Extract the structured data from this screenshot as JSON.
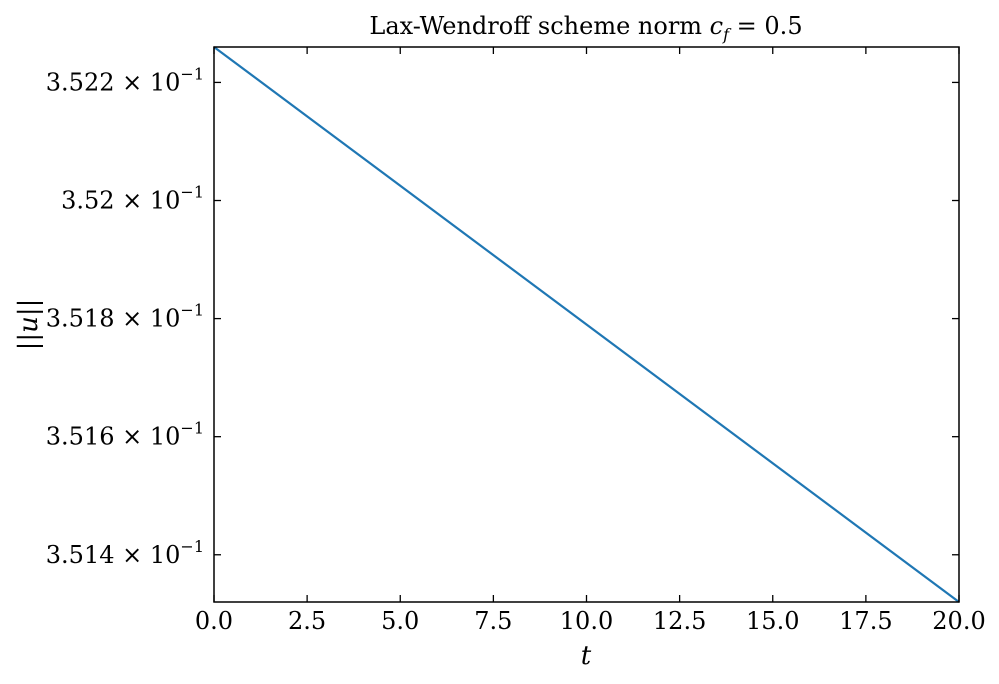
{
  "chart_data": {
    "type": "line",
    "title_prefix": "Lax-Wendroff scheme norm ",
    "title_var": "c",
    "title_sub": "f",
    "title_suffix": " = 0.5",
    "xlabel": "t",
    "ylabel": "||u||",
    "xlim": [
      0.0,
      20.0
    ],
    "ylim": [
      0.35132,
      0.35226
    ],
    "x_ticks": [
      {
        "value": 0.0,
        "label": "0.0"
      },
      {
        "value": 2.5,
        "label": "2.5"
      },
      {
        "value": 5.0,
        "label": "5.0"
      },
      {
        "value": 7.5,
        "label": "7.5"
      },
      {
        "value": 10.0,
        "label": "10.0"
      },
      {
        "value": 12.5,
        "label": "12.5"
      },
      {
        "value": 15.0,
        "label": "15.0"
      },
      {
        "value": 17.5,
        "label": "17.5"
      },
      {
        "value": 20.0,
        "label": "20.0"
      }
    ],
    "y_ticks": [
      {
        "value": 0.3514,
        "mantissa": "3.514",
        "base": "10",
        "exp": "−1"
      },
      {
        "value": 0.3516,
        "mantissa": "3.516",
        "base": "10",
        "exp": "−1"
      },
      {
        "value": 0.3518,
        "mantissa": "3.518",
        "base": "10",
        "exp": "−1"
      },
      {
        "value": 0.352,
        "mantissa": "3.52",
        "base": "10",
        "exp": "−1"
      },
      {
        "value": 0.3522,
        "mantissa": "3.522",
        "base": "10",
        "exp": "−1"
      }
    ],
    "series": [
      {
        "color": "#1f77b4",
        "x": [
          0.0,
          20.0
        ],
        "y": [
          0.35226,
          0.35132
        ]
      }
    ],
    "grid": false
  }
}
